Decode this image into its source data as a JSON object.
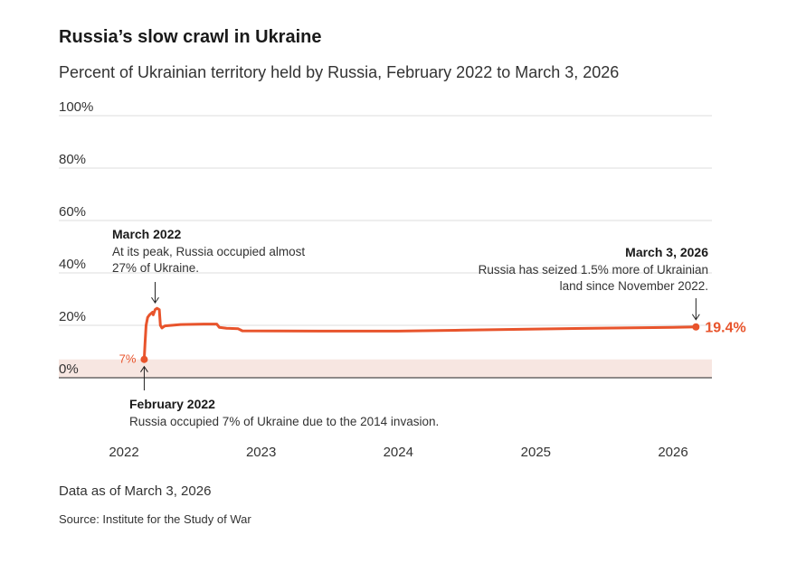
{
  "title": "Russia’s slow crawl in Ukraine",
  "subtitle": "Percent of Ukrainian territory held by Russia, February 2022 to March 3, 2026",
  "note": "Data as of March 3, 2026",
  "source": "Source: Institute for the Study of War",
  "colors": {
    "line": "#e8542c",
    "band": "#f7e6e1",
    "grid": "#dcdcdc",
    "axis": "#222222"
  },
  "chart_data": {
    "type": "line",
    "title": "Russia’s slow crawl in Ukraine",
    "ylim": [
      0,
      100
    ],
    "xlim": [
      "2021-10-01",
      "2026-06-01"
    ],
    "yticks": [
      0,
      20,
      40,
      60,
      80,
      100
    ],
    "ytick_labels": [
      "0%",
      "20%",
      "40%",
      "60%",
      "80%",
      "100%"
    ],
    "xticks": [
      "2022-01-01",
      "2023-01-01",
      "2024-01-01",
      "2025-01-01",
      "2026-01-01"
    ],
    "xtick_labels": [
      "2022",
      "2023",
      "2024",
      "2025",
      "2026"
    ],
    "grid": true,
    "baseline_band": {
      "from": 0,
      "to": 7
    },
    "series": [
      {
        "points": [
          {
            "x": "2022-02-24",
            "y": 7
          },
          {
            "x": "2022-02-26",
            "y": 13
          },
          {
            "x": "2022-03-01",
            "y": 20
          },
          {
            "x": "2022-03-05",
            "y": 23
          },
          {
            "x": "2022-03-10",
            "y": 24
          },
          {
            "x": "2022-03-18",
            "y": 25
          },
          {
            "x": "2022-03-20",
            "y": 24
          },
          {
            "x": "2022-03-25",
            "y": 26
          },
          {
            "x": "2022-03-30",
            "y": 26.5
          },
          {
            "x": "2022-04-05",
            "y": 26
          },
          {
            "x": "2022-04-08",
            "y": 20
          },
          {
            "x": "2022-04-12",
            "y": 19
          },
          {
            "x": "2022-04-20",
            "y": 19.8
          },
          {
            "x": "2022-06-01",
            "y": 20.3
          },
          {
            "x": "2022-08-01",
            "y": 20.5
          },
          {
            "x": "2022-09-05",
            "y": 20.5
          },
          {
            "x": "2022-09-12",
            "y": 19.2
          },
          {
            "x": "2022-10-01",
            "y": 18.9
          },
          {
            "x": "2022-11-01",
            "y": 18.7
          },
          {
            "x": "2022-11-12",
            "y": 17.9
          },
          {
            "x": "2023-06-01",
            "y": 17.8
          },
          {
            "x": "2024-01-01",
            "y": 17.8
          },
          {
            "x": "2024-06-01",
            "y": 18.1
          },
          {
            "x": "2025-01-01",
            "y": 18.6
          },
          {
            "x": "2025-06-01",
            "y": 18.9
          },
          {
            "x": "2026-01-01",
            "y": 19.2
          },
          {
            "x": "2026-03-03",
            "y": 19.4
          }
        ]
      }
    ],
    "start_marker": {
      "x": "2022-02-24",
      "y": 7,
      "label": "7%"
    },
    "end_marker": {
      "x": "2026-03-03",
      "y": 19.4,
      "label": "19.4%"
    },
    "annotations": [
      {
        "heading": "March 2022",
        "lines": [
          "At its peak, Russia occupied almost",
          "27% of Ukraine."
        ],
        "x": "2022-03-25",
        "y": 26.5,
        "anchor": "start",
        "arrow": "down"
      },
      {
        "heading": "March 3, 2026",
        "lines": [
          "Russia has seized 1.5% more of Ukrainian",
          "land since November 2022."
        ],
        "x": "2026-03-03",
        "y": 19.4,
        "anchor": "end",
        "arrow": "down"
      },
      {
        "heading": "February 2022",
        "lines": [
          "Russia occupied 7% of Ukraine due to the 2014 invasion."
        ],
        "x": "2022-02-24",
        "y": 7,
        "anchor": "start",
        "arrow": "up"
      }
    ]
  }
}
